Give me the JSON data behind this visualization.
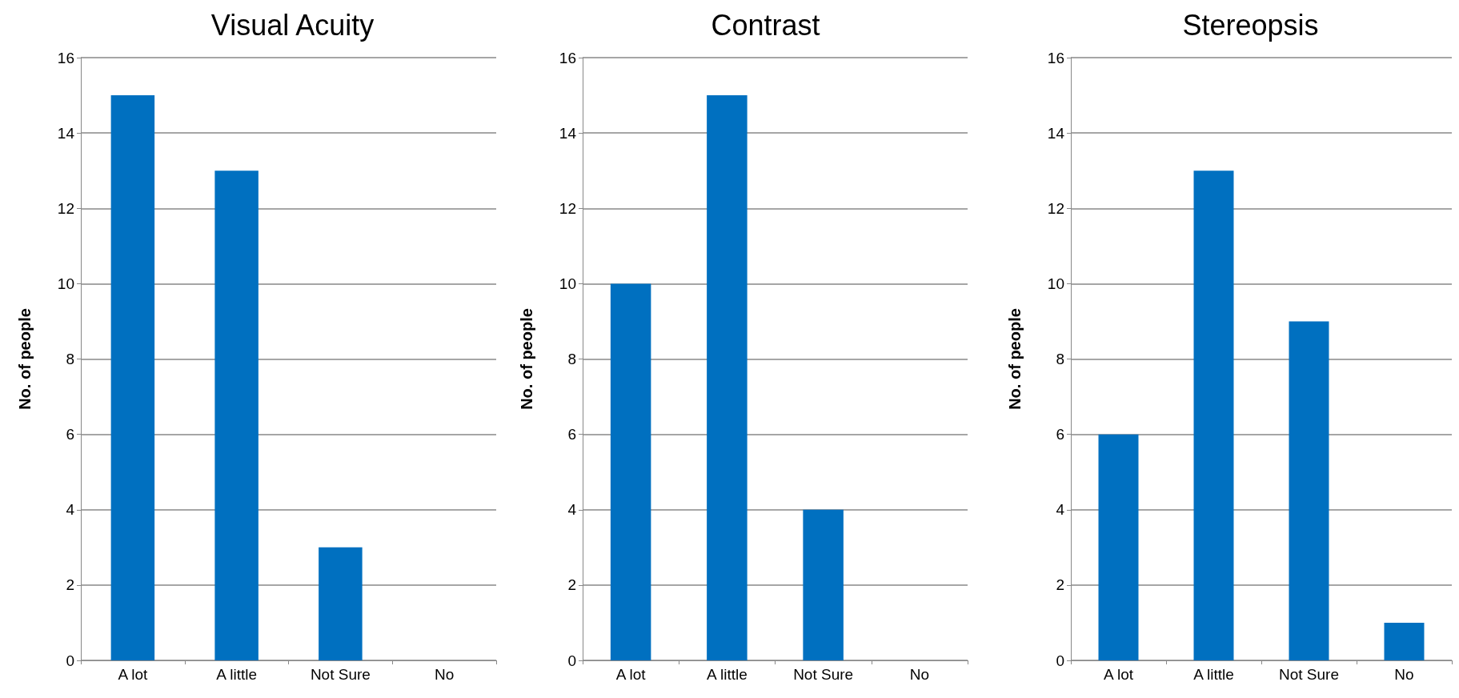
{
  "chart_data": [
    {
      "type": "bar",
      "title": "Visual Acuity",
      "ylabel": "No. of people",
      "categories": [
        "A lot",
        "A little",
        "Not Sure",
        "No"
      ],
      "values": [
        15,
        13,
        3,
        0
      ],
      "color": "#0070c0",
      "ylim": [
        0,
        16
      ],
      "yticks": [
        0,
        2,
        4,
        6,
        8,
        10,
        12,
        14,
        16
      ],
      "grid": "y"
    },
    {
      "type": "bar",
      "title": "Contrast",
      "ylabel": "No. of people",
      "categories": [
        "A lot",
        "A little",
        "Not Sure",
        "No"
      ],
      "values": [
        10,
        15,
        4,
        0
      ],
      "color": "#0070c0",
      "ylim": [
        0,
        16
      ],
      "yticks": [
        0,
        2,
        4,
        6,
        8,
        10,
        12,
        14,
        16
      ],
      "grid": "y"
    },
    {
      "type": "bar",
      "title": "Stereopsis",
      "ylabel": "No. of people",
      "categories": [
        "A lot",
        "A little",
        "Not Sure",
        "No"
      ],
      "values": [
        6,
        13,
        9,
        1
      ],
      "color": "#0070c0",
      "ylim": [
        0,
        16
      ],
      "yticks": [
        0,
        2,
        4,
        6,
        8,
        10,
        12,
        14,
        16
      ],
      "grid": "y"
    }
  ]
}
